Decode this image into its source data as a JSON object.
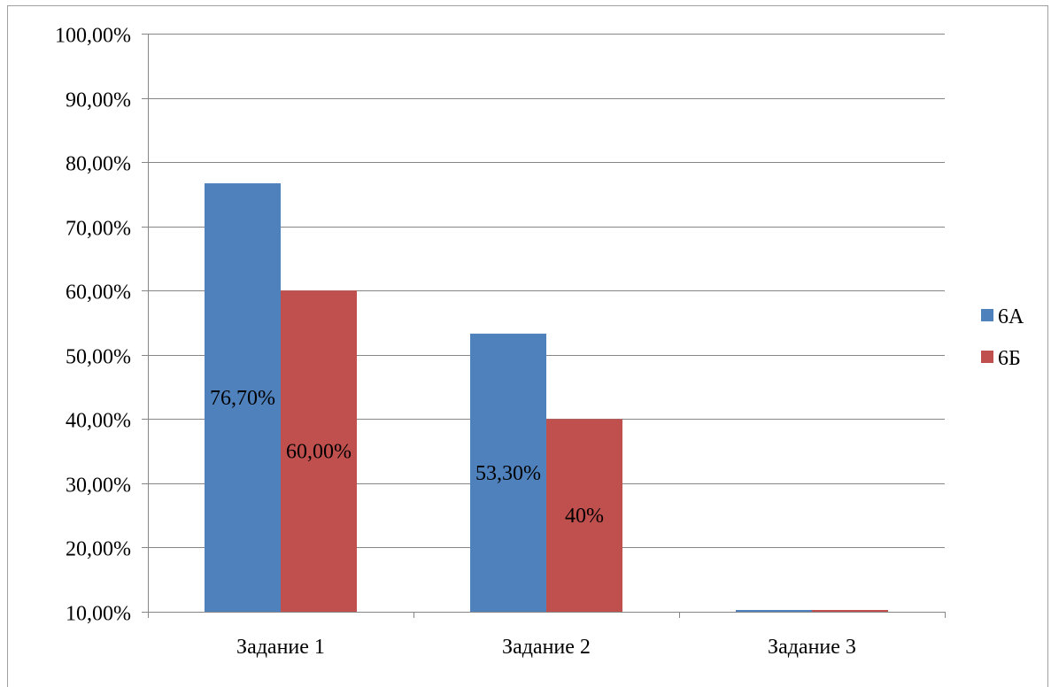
{
  "chart_data": {
    "type": "bar",
    "title": "",
    "xlabel": "",
    "ylabel": "",
    "categories": [
      "Задание 1",
      "Задание 2",
      "Задание 3"
    ],
    "ylim": [
      10,
      100
    ],
    "y_ticks": [
      "10,00%",
      "20,00%",
      "30,00%",
      "40,00%",
      "50,00%",
      "60,00%",
      "70,00%",
      "80,00%",
      "90,00%",
      "100,00%"
    ],
    "y_tick_values": [
      10,
      20,
      30,
      40,
      50,
      60,
      70,
      80,
      90,
      100
    ],
    "grid": true,
    "legend_position": "right",
    "series": [
      {
        "name": "6А",
        "color": "#4f81bd",
        "values": [
          76.7,
          53.3,
          10
        ],
        "labels": [
          "76,70%",
          "53,30%",
          ""
        ]
      },
      {
        "name": "6Б",
        "color": "#c0504d",
        "values": [
          60.0,
          40.0,
          10
        ],
        "labels": [
          "60,00%",
          "40%",
          ""
        ]
      }
    ]
  }
}
